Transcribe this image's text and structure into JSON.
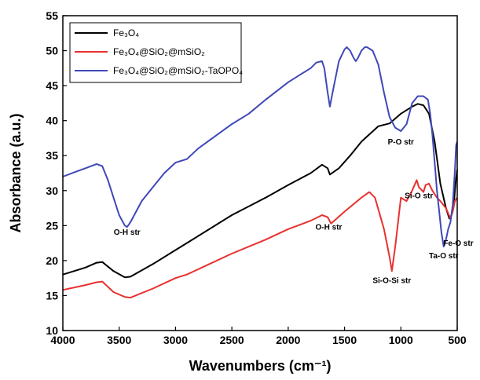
{
  "chart_data": {
    "type": "line",
    "xlabel": "Wavenumbers (cm⁻¹)",
    "ylabel": "Absorbance (a.u.)",
    "xlim": [
      4000,
      500
    ],
    "ylim": [
      10,
      55
    ],
    "x_ticks": [
      "4000",
      "3500",
      "3000",
      "2500",
      "2000",
      "1500",
      "1000",
      "500"
    ],
    "y_ticks": [
      "10",
      "15",
      "20",
      "25",
      "30",
      "35",
      "40",
      "45",
      "50",
      "55"
    ],
    "legend_position": "top-left",
    "series": [
      {
        "name": "Fe₃O₄",
        "color": "#000000",
        "x": [
          4000,
          3800,
          3700,
          3650,
          3550,
          3450,
          3400,
          3200,
          3000,
          2900,
          2500,
          2200,
          2000,
          1800,
          1700,
          1650,
          1630,
          1550,
          1450,
          1350,
          1200,
          1100,
          1000,
          900,
          850,
          800,
          750,
          700,
          650,
          600,
          570,
          550,
          530,
          515,
          500
        ],
        "y": [
          18.0,
          19.0,
          19.7,
          19.8,
          18.5,
          17.6,
          17.7,
          19.5,
          21.5,
          22.5,
          26.5,
          29.0,
          30.8,
          32.5,
          33.7,
          33.2,
          32.3,
          33.2,
          35.0,
          37.0,
          39.2,
          39.6,
          41.0,
          42.0,
          42.4,
          42.2,
          41.0,
          37.0,
          31.0,
          27.5,
          26.0,
          26.5,
          28.0,
          31.0,
          33.0
        ]
      },
      {
        "name": "Fe₃O₄@SiO₂@mSiO₂",
        "color": "#e8312f",
        "x": [
          4000,
          3800,
          3700,
          3650,
          3550,
          3450,
          3400,
          3200,
          3000,
          2900,
          2500,
          2200,
          2000,
          1800,
          1700,
          1650,
          1620,
          1500,
          1350,
          1280,
          1230,
          1150,
          1100,
          1080,
          1050,
          1000,
          950,
          900,
          860,
          840,
          800,
          780,
          750,
          720,
          700,
          680,
          650,
          600,
          560,
          540,
          520,
          500
        ],
        "y": [
          15.8,
          16.5,
          16.9,
          17.0,
          15.5,
          14.8,
          14.7,
          16.0,
          17.5,
          18.0,
          21.0,
          23.0,
          24.5,
          25.7,
          26.5,
          26.2,
          25.3,
          27.0,
          29.0,
          29.8,
          29.0,
          24.5,
          20.5,
          18.5,
          22.0,
          29.0,
          28.5,
          30.0,
          31.5,
          30.5,
          29.8,
          30.8,
          31.0,
          30.0,
          29.5,
          29.0,
          28.5,
          27.5,
          26.0,
          27.0,
          28.5,
          29.0
        ]
      },
      {
        "name": "Fe₃O₄@SiO₂@mSiO₂-TaOPO₄",
        "color": "#3f48b8",
        "x": [
          4000,
          3900,
          3800,
          3700,
          3650,
          3600,
          3550,
          3500,
          3450,
          3430,
          3400,
          3300,
          3200,
          3100,
          3000,
          2900,
          2800,
          2500,
          2350,
          2200,
          2000,
          1900,
          1800,
          1750,
          1700,
          1680,
          1650,
          1630,
          1600,
          1550,
          1500,
          1480,
          1450,
          1420,
          1400,
          1380,
          1350,
          1320,
          1300,
          1250,
          1200,
          1150,
          1100,
          1050,
          1000,
          950,
          900,
          850,
          800,
          760,
          740,
          720,
          700,
          680,
          660,
          640,
          620,
          600,
          580,
          560,
          540,
          520,
          510,
          500
        ],
        "y": [
          32.0,
          32.6,
          33.2,
          33.8,
          33.5,
          31.5,
          29.0,
          26.5,
          25.0,
          24.8,
          25.5,
          28.5,
          30.5,
          32.5,
          34.0,
          34.5,
          36.0,
          39.5,
          41.0,
          43.0,
          45.5,
          46.5,
          47.5,
          48.3,
          48.5,
          47.5,
          44.0,
          42.0,
          44.5,
          48.5,
          50.2,
          50.5,
          50.0,
          49.0,
          48.5,
          49.0,
          50.0,
          50.5,
          50.5,
          50.0,
          48.0,
          44.0,
          40.5,
          39.0,
          38.5,
          39.5,
          42.5,
          43.5,
          43.5,
          43.0,
          41.0,
          38.0,
          34.0,
          30.0,
          27.0,
          24.0,
          22.0,
          23.0,
          24.5,
          25.5,
          28.0,
          33.0,
          36.5,
          37.0
        ]
      }
    ],
    "annotations": [
      {
        "text": "O-H str",
        "x": 3430,
        "y": 23.7
      },
      {
        "text": "O-H str",
        "x": 1640,
        "y": 24.4
      },
      {
        "text": "P-O str",
        "x": 1000,
        "y": 36.6
      },
      {
        "text": "Si-O str",
        "x": 840,
        "y": 28.9
      },
      {
        "text": "Si-O-Si str",
        "x": 1080,
        "y": 16.8
      },
      {
        "text": "Ta-O str",
        "x": 620,
        "y": 20.3
      },
      {
        "text": "Fe-O str",
        "x": 490,
        "y": 22.1
      }
    ]
  }
}
